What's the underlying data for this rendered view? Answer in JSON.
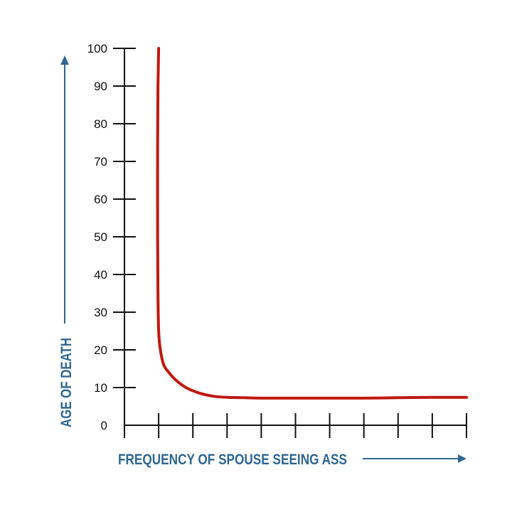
{
  "colors": {
    "axis": "#111111",
    "label_accent": "#2f6690",
    "curve": "#c0180f"
  },
  "chart_data": {
    "type": "line",
    "title": "",
    "xlabel": "FREQUENCY OF SPOUSE SEEING ASS",
    "ylabel": "AGE OF DEATH",
    "ylim": [
      0,
      100
    ],
    "yticks": [
      "0",
      "10",
      "20",
      "30",
      "40",
      "50",
      "60",
      "70",
      "80",
      "90",
      "100"
    ],
    "x_tick_count": 10,
    "xlim": [
      0,
      10
    ],
    "grid": false,
    "legend": "none",
    "series": [
      {
        "x": [
          1.0,
          0.98,
          0.97,
          0.97,
          0.98,
          1.0,
          1.05,
          1.15,
          1.3,
          1.5,
          1.8,
          2.2,
          2.6,
          3.0,
          3.5,
          4.0,
          5.0,
          6.0,
          7.0,
          8.0,
          9.0,
          10.0
        ],
        "values": [
          100,
          90,
          75,
          50,
          35,
          25,
          20,
          16,
          14,
          12,
          10,
          8.5,
          7.7,
          7.4,
          7.3,
          7.2,
          7.2,
          7.2,
          7.2,
          7.3,
          7.4,
          7.4
        ]
      }
    ]
  }
}
